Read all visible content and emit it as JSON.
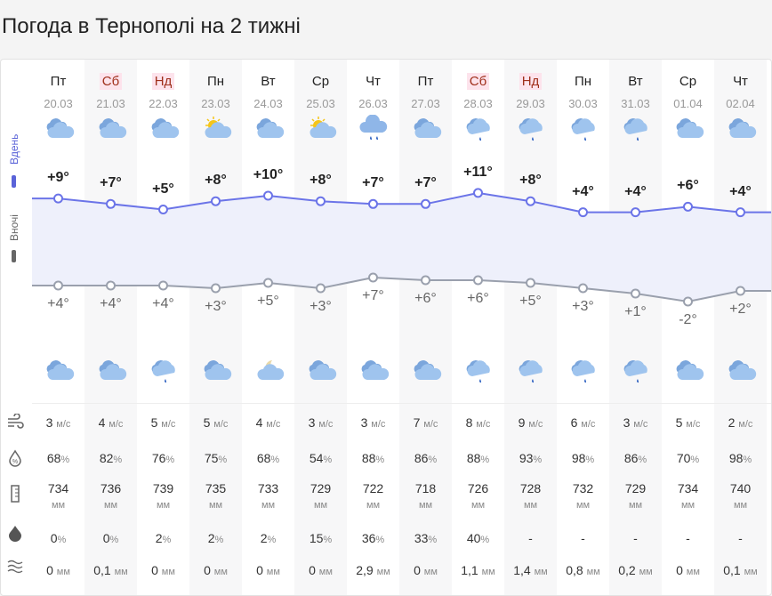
{
  "title": "Погода в Тернополі на 2 тижні",
  "labels": {
    "day": "Вдень",
    "night": "Вночі"
  },
  "colors": {
    "day_line": "#6b74e8",
    "night_line": "#9aa0ad",
    "weekend_text": "#a0301c",
    "weekend_bg": "#fde3ec"
  },
  "days": [
    {
      "dow": "Пт",
      "date": "20.03",
      "weekend": false,
      "day_icon": "cloudy",
      "night_icon": "cloudy",
      "t_day": "+9°",
      "t_night": "+4°",
      "d": 9,
      "n": 4,
      "wind": "3",
      "hum": "68",
      "press": "734",
      "pop": "0",
      "precip": "0"
    },
    {
      "dow": "Сб",
      "date": "21.03",
      "weekend": true,
      "day_icon": "cloudy",
      "night_icon": "cloudy",
      "t_day": "+7°",
      "t_night": "+4°",
      "d": 7,
      "n": 4,
      "wind": "4",
      "hum": "82",
      "press": "736",
      "pop": "0",
      "precip": "0,1"
    },
    {
      "dow": "Нд",
      "date": "22.03",
      "weekend": true,
      "day_icon": "cloudy",
      "night_icon": "cloudy-drop",
      "t_day": "+5°",
      "t_night": "+4°",
      "d": 5,
      "n": 4,
      "wind": "5",
      "hum": "76",
      "press": "739",
      "pop": "2",
      "precip": "0"
    },
    {
      "dow": "Пн",
      "date": "23.03",
      "weekend": false,
      "day_icon": "sun-cloud",
      "night_icon": "cloudy",
      "t_day": "+8°",
      "t_night": "+3°",
      "d": 8,
      "n": 3,
      "wind": "5",
      "hum": "75",
      "press": "735",
      "pop": "2",
      "precip": "0"
    },
    {
      "dow": "Вт",
      "date": "24.03",
      "weekend": false,
      "day_icon": "cloudy",
      "night_icon": "moon-cloud",
      "t_day": "+10°",
      "t_night": "+5°",
      "d": 10,
      "n": 5,
      "wind": "4",
      "hum": "68",
      "press": "733",
      "pop": "2",
      "precip": "0"
    },
    {
      "dow": "Ср",
      "date": "25.03",
      "weekend": false,
      "day_icon": "sun-cloud",
      "night_icon": "cloudy",
      "t_day": "+8°",
      "t_night": "+3°",
      "d": 8,
      "n": 3,
      "wind": "3",
      "hum": "54",
      "press": "729",
      "pop": "15",
      "precip": "0"
    },
    {
      "dow": "Чт",
      "date": "26.03",
      "weekend": false,
      "day_icon": "rain",
      "night_icon": "cloudy",
      "t_day": "+7°",
      "t_night": "+7°",
      "d": 7,
      "n": 7,
      "wind": "3",
      "hum": "88",
      "press": "722",
      "pop": "36",
      "precip": "2,9"
    },
    {
      "dow": "Пт",
      "date": "27.03",
      "weekend": false,
      "day_icon": "cloudy",
      "night_icon": "cloudy",
      "t_day": "+7°",
      "t_night": "+6°",
      "d": 7,
      "n": 6,
      "wind": "7",
      "hum": "86",
      "press": "718",
      "pop": "33",
      "precip": "0"
    },
    {
      "dow": "Сб",
      "date": "28.03",
      "weekend": true,
      "day_icon": "cloudy-drop",
      "night_icon": "cloudy-drop",
      "t_day": "+11°",
      "t_night": "+6°",
      "d": 11,
      "n": 6,
      "wind": "8",
      "hum": "88",
      "press": "726",
      "pop": "40",
      "precip": "1,1"
    },
    {
      "dow": "Нд",
      "date": "29.03",
      "weekend": true,
      "day_icon": "cloudy-drop",
      "night_icon": "cloudy-drop",
      "t_day": "+8°",
      "t_night": "+5°",
      "d": 8,
      "n": 5,
      "wind": "9",
      "hum": "93",
      "press": "728",
      "pop": "-",
      "precip": "1,4"
    },
    {
      "dow": "Пн",
      "date": "30.03",
      "weekend": false,
      "day_icon": "cloudy-drop",
      "night_icon": "cloudy-drop",
      "t_day": "+4°",
      "t_night": "+3°",
      "d": 4,
      "n": 3,
      "wind": "6",
      "hum": "98",
      "press": "732",
      "pop": "-",
      "precip": "0,8"
    },
    {
      "dow": "Вт",
      "date": "31.03",
      "weekend": false,
      "day_icon": "cloudy-drop",
      "night_icon": "cloudy-drop",
      "t_day": "+4°",
      "t_night": "+1°",
      "d": 4,
      "n": 1,
      "wind": "3",
      "hum": "86",
      "press": "729",
      "pop": "-",
      "precip": "0,2"
    },
    {
      "dow": "Ср",
      "date": "01.04",
      "weekend": false,
      "day_icon": "cloudy",
      "night_icon": "cloudy",
      "t_day": "+6°",
      "t_night": "-2°",
      "d": 6,
      "n": -2,
      "wind": "5",
      "hum": "70",
      "press": "734",
      "pop": "-",
      "precip": "0"
    },
    {
      "dow": "Чт",
      "date": "02.04",
      "weekend": false,
      "day_icon": "cloudy",
      "night_icon": "cloudy",
      "t_day": "+4°",
      "t_night": "+2°",
      "d": 4,
      "n": 2,
      "wind": "2",
      "hum": "98",
      "press": "740",
      "pop": "-",
      "precip": "0,1"
    }
  ],
  "units": {
    "wind": "м/с",
    "hum": "%",
    "press": "мм",
    "pop": "%",
    "precip": "мм"
  }
}
